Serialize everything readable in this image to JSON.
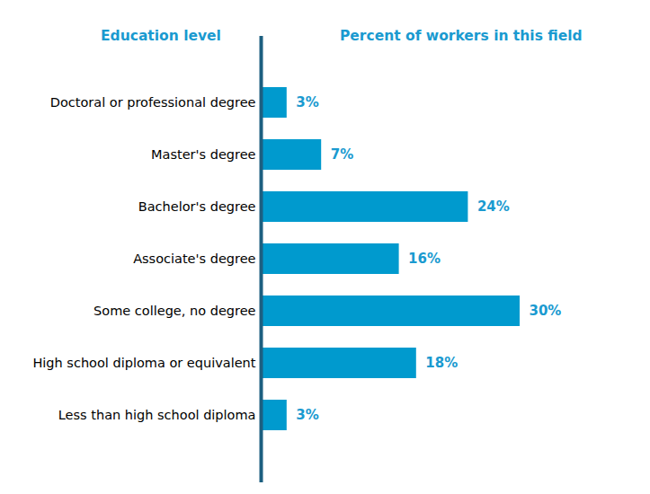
{
  "chart_data": {
    "type": "bar",
    "orientation": "horizontal",
    "ylabel": "Education level",
    "xlabel": "Percent of workers in this field",
    "categories": [
      "Doctoral or professional degree",
      "Master's degree",
      "Bachelor's degree",
      "Associate's degree",
      "Some college, no degree",
      "High school diploma or equivalent",
      "Less than high school diploma"
    ],
    "values": [
      3,
      7,
      24,
      16,
      30,
      18,
      3
    ],
    "value_labels": [
      "3%",
      "7%",
      "24%",
      "16%",
      "30%",
      "18%",
      "3%"
    ],
    "color": "#009ace",
    "xlim": [
      0,
      30
    ],
    "data_labels": true,
    "tick_labels": "y",
    "grid": false
  }
}
